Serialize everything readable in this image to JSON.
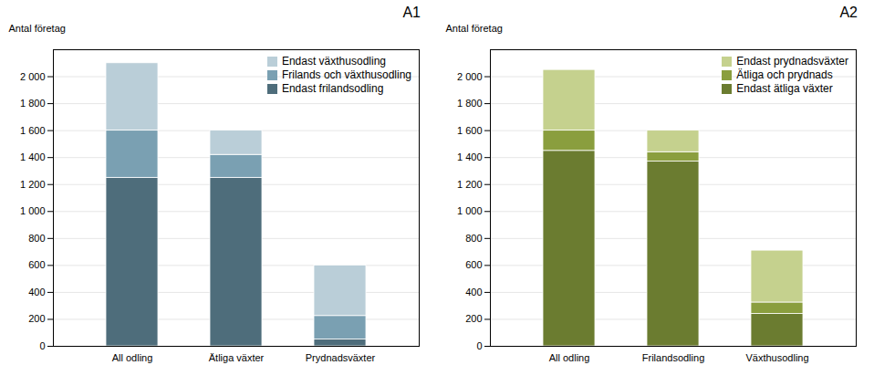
{
  "chart_data": [
    {
      "type": "bar",
      "stacked": true,
      "title": "A1",
      "ylabel": "Antal företag",
      "categories": [
        "All odling",
        "Ätliga växter",
        "Prydnadsväxter"
      ],
      "series": [
        {
          "name": "Endast frilandsodling",
          "color": "#4e6d7b",
          "values": [
            1250,
            1250,
            50
          ]
        },
        {
          "name": "Frilands och växthusodling",
          "color": "#7aa0b2",
          "values": [
            350,
            170,
            175
          ]
        },
        {
          "name": "Endast växthusodling",
          "color": "#baced8",
          "values": [
            500,
            180,
            375
          ]
        }
      ],
      "ylim": [
        0,
        2200
      ],
      "yticks": [
        0,
        200,
        400,
        600,
        800,
        {
          "value": 1000,
          "label": "1 000"
        },
        {
          "value": 1200,
          "label": "1 200"
        },
        {
          "value": 1400,
          "label": "1 400"
        },
        {
          "value": 1600,
          "label": "1 600"
        },
        {
          "value": 1800,
          "label": "1 800"
        },
        {
          "value": 2000,
          "label": "2 000"
        }
      ],
      "grid": true,
      "legend": "upper right"
    },
    {
      "type": "bar",
      "stacked": true,
      "title": "A2",
      "ylabel": "Antal företag",
      "categories": [
        "All odling",
        "Frilandsodling",
        "Växthusodling"
      ],
      "series": [
        {
          "name": "Endast ätliga växter",
          "color": "#6b7c30",
          "values": [
            1450,
            1370,
            240
          ]
        },
        {
          "name": "Ätliga och prydnads",
          "color": "#8a9e3e",
          "values": [
            150,
            70,
            85
          ]
        },
        {
          "name": "Endast prydnadsväxter",
          "color": "#c5d18e",
          "values": [
            450,
            160,
            385
          ]
        }
      ],
      "ylim": [
        0,
        2200
      ],
      "yticks": [
        0,
        200,
        400,
        600,
        800,
        {
          "value": 1000,
          "label": "1 000"
        },
        {
          "value": 1200,
          "label": "1 200"
        },
        {
          "value": 1400,
          "label": "1 400"
        },
        {
          "value": 1600,
          "label": "1 600"
        },
        {
          "value": 1800,
          "label": "1 800"
        },
        {
          "value": 2000,
          "label": "2 000"
        }
      ],
      "grid": true,
      "legend": "upper right"
    }
  ]
}
